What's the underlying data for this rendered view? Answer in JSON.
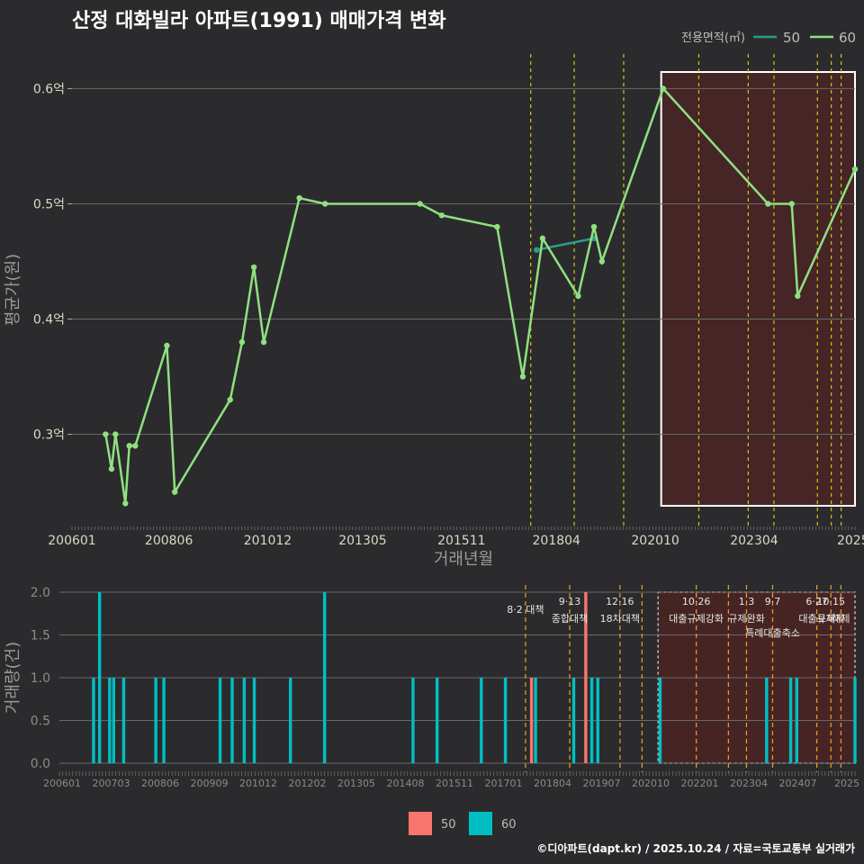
{
  "title": "산정 대화빌라 아파트(1991) 매매가격 변화",
  "caption": "©디아파트(dapt.kr) / 2025.10.24 / 자료=국토교통부 실거래가",
  "colors": {
    "background": "#2b2b2d",
    "grid": "#6a6a6a",
    "line50": "#2a9d8f",
    "line60": "#90e080",
    "bar50": "#f8766d",
    "bar60": "#00bfc4",
    "vline": "#d4c21a",
    "vline_bottom": "#f0a020",
    "highlight": "#4a2424"
  },
  "chart_data": [
    {
      "type": "line",
      "title": "산정 대화빌라 아파트(1991) 매매가격 변화",
      "xlabel": "거래년월",
      "ylabel": "평균가(원)",
      "legend_title": "전용면적(㎡)",
      "legend_placement": "top-right",
      "x_tick_labels": [
        "200601",
        "200806",
        "201012",
        "201305",
        "201511",
        "201804",
        "202010",
        "202304",
        "2025"
      ],
      "y_tick_labels": [
        "0.3억",
        "0.4억",
        "0.5억",
        "0.6억"
      ],
      "y_ticks": [
        0.3,
        0.4,
        0.5,
        0.6
      ],
      "ylim": [
        0.22,
        0.63
      ],
      "xlim": [
        2006.0,
        2025.8
      ],
      "series": [
        {
          "name": "50",
          "points": [
            [
              2017.75,
              0.46
            ],
            [
              2019.2,
              0.47
            ]
          ]
        },
        {
          "name": "60",
          "points": [
            [
              2006.85,
              0.3
            ],
            [
              2007.0,
              0.27
            ],
            [
              2007.1,
              0.3
            ],
            [
              2007.35,
              0.24
            ],
            [
              2007.45,
              0.29
            ],
            [
              2007.6,
              0.29
            ],
            [
              2008.4,
              0.377
            ],
            [
              2008.6,
              0.25
            ],
            [
              2010.0,
              0.33
            ],
            [
              2010.3,
              0.38
            ],
            [
              2010.6,
              0.445
            ],
            [
              2010.85,
              0.38
            ],
            [
              2011.75,
              0.505
            ],
            [
              2012.4,
              0.5
            ],
            [
              2014.8,
              0.5
            ],
            [
              2015.35,
              0.49
            ],
            [
              2016.75,
              0.48
            ],
            [
              2017.4,
              0.35
            ],
            [
              2017.9,
              0.47
            ],
            [
              2018.8,
              0.42
            ],
            [
              2019.2,
              0.48
            ],
            [
              2019.4,
              0.45
            ],
            [
              2020.95,
              0.6
            ],
            [
              2023.6,
              0.5
            ],
            [
              2024.2,
              0.5
            ],
            [
              2024.35,
              0.42
            ],
            [
              2025.8,
              0.53
            ]
          ]
        }
      ],
      "event_years": [
        2017.6,
        2018.7,
        2019.95,
        2021.85,
        2023.1,
        2023.75,
        2024.85,
        2025.2,
        2025.45
      ],
      "highlight_range": [
        2020.9,
        2025.8
      ]
    },
    {
      "type": "bar",
      "xlabel": "",
      "ylabel": "거래량(건)",
      "x_tick_labels": [
        "200601",
        "200703",
        "200806",
        "200909",
        "201012",
        "201202",
        "201305",
        "201408",
        "201511",
        "201701",
        "201804",
        "201907",
        "202010",
        "202201",
        "202304",
        "202407",
        "2025"
      ],
      "y_tick_labels": [
        "0.0",
        "0.5",
        "1.0",
        "1.5",
        "2.0"
      ],
      "y_ticks": [
        0,
        0.5,
        1,
        1.5,
        2
      ],
      "ylim": [
        0,
        2
      ],
      "xlim": [
        2006.0,
        2025.8
      ],
      "legend": [
        "50",
        "60"
      ],
      "legend_placement": "bottom",
      "series": [
        {
          "name": "50",
          "bars": [
            [
              2017.75,
              1
            ],
            [
              2019.1,
              2
            ]
          ]
        },
        {
          "name": "60",
          "bars": [
            [
              2006.85,
              1
            ],
            [
              2007.0,
              2
            ],
            [
              2007.25,
              1
            ],
            [
              2007.35,
              1
            ],
            [
              2007.6,
              1
            ],
            [
              2008.4,
              1
            ],
            [
              2008.6,
              1
            ],
            [
              2010.0,
              1
            ],
            [
              2010.3,
              1
            ],
            [
              2010.6,
              1
            ],
            [
              2010.85,
              1
            ],
            [
              2011.75,
              1
            ],
            [
              2012.6,
              2
            ],
            [
              2014.8,
              1
            ],
            [
              2015.4,
              1
            ],
            [
              2016.5,
              1
            ],
            [
              2017.1,
              1
            ],
            [
              2017.85,
              1
            ],
            [
              2018.8,
              1
            ],
            [
              2019.25,
              1
            ],
            [
              2019.4,
              1
            ],
            [
              2020.95,
              1
            ],
            [
              2023.6,
              1
            ],
            [
              2024.2,
              1
            ],
            [
              2024.35,
              1
            ],
            [
              2025.8,
              1
            ]
          ]
        }
      ],
      "events": [
        {
          "x": 2017.6,
          "date": "",
          "label": "8·2 대책"
        },
        {
          "x": 2018.7,
          "date": "9·13",
          "label": "종합대책"
        },
        {
          "x": 2019.95,
          "date": "12·16",
          "label": "18차대책"
        },
        {
          "x": 2020.5,
          "date": "",
          "label": ""
        },
        {
          "x": 2021.85,
          "date": "10·26",
          "label": "대출규제강화"
        },
        {
          "x": 2022.65,
          "date": "",
          "label": ""
        },
        {
          "x": 2023.1,
          "date": "1·3",
          "label": "규제완화"
        },
        {
          "x": 2023.75,
          "date": "9·7",
          "label": "특례대출축소"
        },
        {
          "x": 2024.85,
          "date": "6·27",
          "label": "대출규제"
        },
        {
          "x": 2025.2,
          "date": "10·15",
          "label": "토허제"
        },
        {
          "x": 2025.45,
          "date": "",
          "label": "해제"
        }
      ],
      "highlight_range": [
        2020.9,
        2025.8
      ]
    }
  ]
}
